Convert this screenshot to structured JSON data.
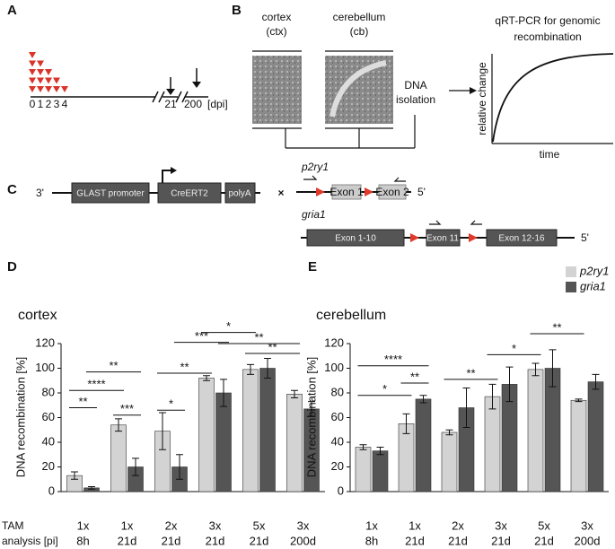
{
  "panel_labels": [
    "A",
    "B",
    "C",
    "D",
    "E"
  ],
  "timeline": {
    "days": [
      "0",
      "1",
      "2",
      "3",
      "4"
    ],
    "day21": "21",
    "day200": "200",
    "unit": "[dpi]"
  },
  "scheme": {
    "cortex": [
      "cortex",
      "(ctx)"
    ],
    "cerebellum": [
      "cerebellum",
      "(cb)"
    ],
    "dna": [
      "DNA",
      "isolation"
    ],
    "plot_title": [
      "qRT-PCR for genomic",
      "recombination"
    ],
    "plot_y": "relative change",
    "plot_x": "time"
  },
  "construct": {
    "three_prime": "3'",
    "promoter": "GLAST promoter",
    "cre": "CreERT2",
    "polya": "polyA",
    "cross": "×",
    "gene1": "p2ry1",
    "exon1": "Exon 1",
    "exon2": "Exon 2",
    "five_prime_1": "5'",
    "gene2": "gria1",
    "exon1_10": "Exon 1-10",
    "exon11": "Exon 11",
    "exon12_16": "Exon 12-16",
    "five_prime_2": "5'"
  },
  "row_labels": [
    "TAM",
    "analysis [pi]"
  ],
  "chart_data": [
    {
      "type": "bar",
      "title": "cortex",
      "y_label": "DNA recombination [%]",
      "categories": [
        [
          "1x",
          "8h"
        ],
        [
          "1x",
          "21d"
        ],
        [
          "2x",
          "21d"
        ],
        [
          "3x",
          "21d"
        ],
        [
          "5x",
          "21d"
        ],
        [
          "3x",
          "200d"
        ]
      ],
      "series": [
        {
          "name": "p2ry1",
          "color": "#d3d3d3",
          "values": [
            13,
            54,
            49,
            92,
            99,
            79
          ],
          "errors": [
            3,
            5,
            15,
            2,
            4,
            3
          ]
        },
        {
          "name": "gria1",
          "color": "#555555",
          "values": [
            3,
            20,
            20,
            80,
            100,
            67
          ],
          "errors": [
            1,
            7,
            10,
            11,
            8,
            6
          ]
        }
      ],
      "ylim": [
        0,
        120
      ],
      "yticks": [
        0,
        20,
        40,
        60,
        80,
        100,
        120
      ],
      "annotations": [
        "**",
        "****",
        "**",
        "***",
        "*",
        "**",
        "***",
        "*",
        "**",
        "**"
      ]
    },
    {
      "type": "bar",
      "title": "cerebellum",
      "y_label": "DNA recombination [%]",
      "categories": [
        [
          "1x",
          "8h"
        ],
        [
          "1x",
          "21d"
        ],
        [
          "2x",
          "21d"
        ],
        [
          "3x",
          "21d"
        ],
        [
          "5x",
          "21d"
        ],
        [
          "3x",
          "200d"
        ]
      ],
      "series": [
        {
          "name": "p2ry1",
          "color": "#d3d3d3",
          "values": [
            36,
            55,
            48,
            77,
            99,
            74
          ],
          "errors": [
            2,
            8,
            2,
            10,
            5,
            1
          ]
        },
        {
          "name": "gria1",
          "color": "#555555",
          "values": [
            33,
            75,
            68,
            87,
            100,
            89
          ],
          "errors": [
            3,
            3,
            16,
            14,
            15,
            6
          ]
        }
      ],
      "ylim": [
        0,
        120
      ],
      "yticks": [
        0,
        20,
        40,
        60,
        80,
        100,
        120
      ],
      "legend": "top-right",
      "annotations": [
        "*",
        "****",
        "**",
        "**",
        "*",
        "**"
      ]
    }
  ]
}
